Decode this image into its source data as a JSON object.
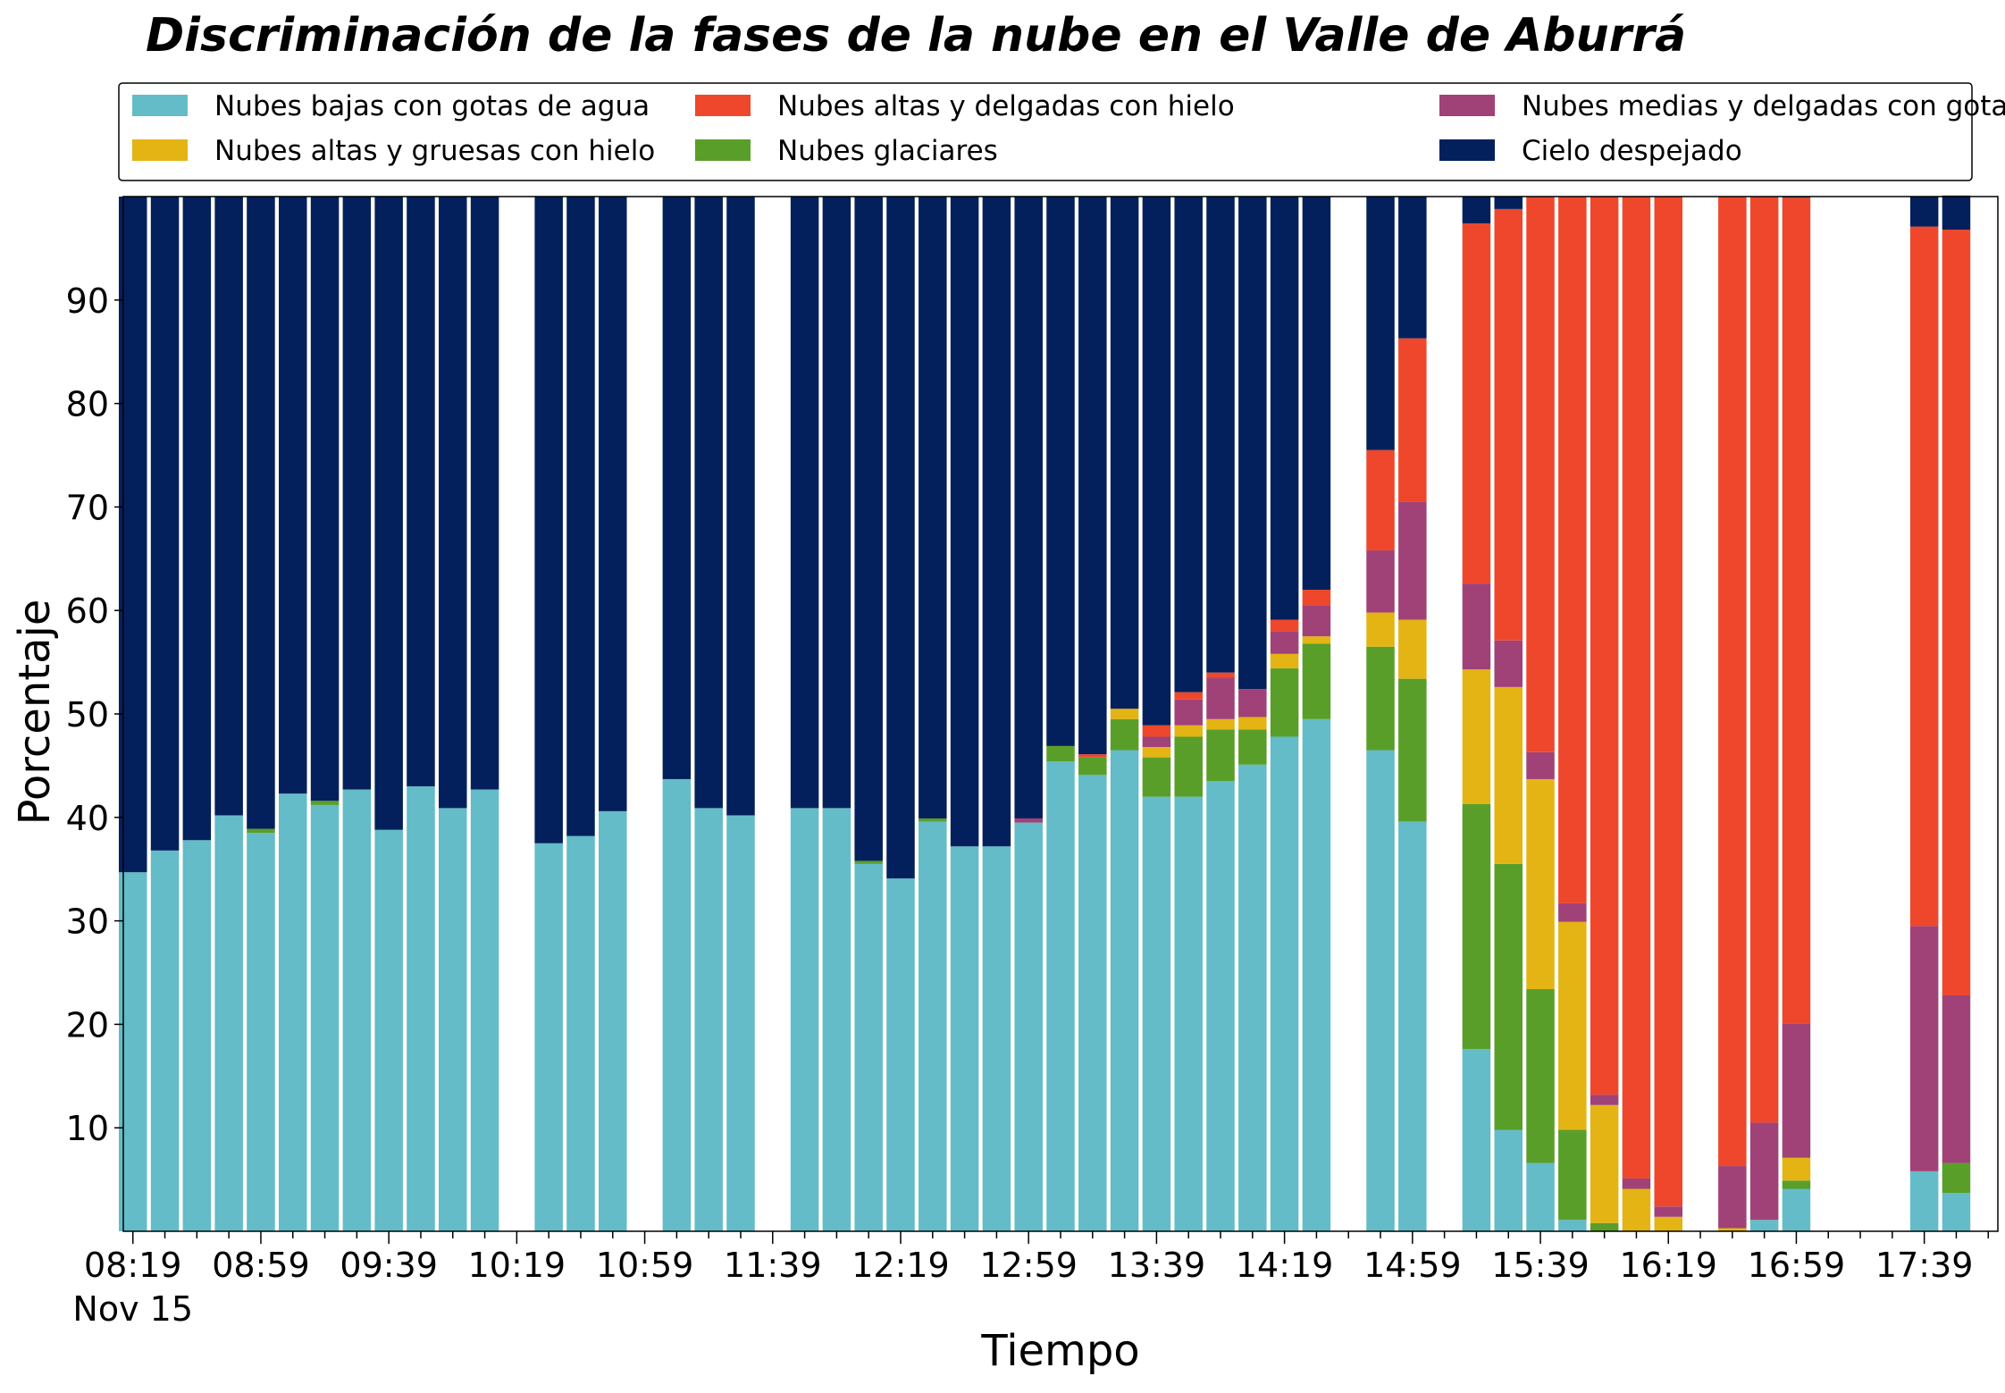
{
  "chart_data": {
    "type": "bar",
    "stacked": true,
    "title": "Discriminación de la fases de la nube en el Valle de Aburrá",
    "xlabel": "Tiempo",
    "ylabel": "Porcentaje",
    "ylim": [
      0,
      100
    ],
    "yticks": [
      10,
      20,
      30,
      40,
      50,
      60,
      70,
      80,
      90
    ],
    "x_start": "08:19",
    "x_step_minutes": 5,
    "x_count": 117,
    "x_tick_labels": [
      "08:19",
      "08:59",
      "09:39",
      "10:19",
      "10:59",
      "11:39",
      "12:19",
      "12:59",
      "13:39",
      "14:19",
      "14:59",
      "15:39",
      "16:19",
      "16:59",
      "17:39"
    ],
    "x_tick_sublabel": "Nov 15",
    "legend_position": "top",
    "grid": false,
    "legend": [
      "Nubes bajas con gotas de agua",
      "Nubes altas y gruesas con hielo",
      "Nubes altas y delgadas con hielo",
      "Nubes glaciares",
      "Nubes medias y delgadas con gotas de agua",
      "Cielo despejado"
    ],
    "series": [
      {
        "name": "Nubes bajas con gotas de agua",
        "color": "#63BCC8"
      },
      {
        "name": "Nubes glaciares",
        "color": "#5A9E2A"
      },
      {
        "name": "Nubes altas y gruesas con hielo",
        "color": "#E3B414"
      },
      {
        "name": "Nubes medias y delgadas con gotas de agua",
        "color": "#A04278"
      },
      {
        "name": "Nubes altas y delgadas con hielo",
        "color": "#EE472C"
      },
      {
        "name": "Cielo despejado",
        "color": "#03205C"
      }
    ],
    "bars": [
      {
        "time": "08:19",
        "values": [
          34.7,
          0,
          0,
          0,
          0,
          65.3
        ]
      },
      {
        "time": "08:29",
        "values": [
          36.8,
          0,
          0,
          0,
          0,
          63.2
        ]
      },
      {
        "time": "08:39",
        "values": [
          37.8,
          0,
          0,
          0,
          0,
          62.2
        ]
      },
      {
        "time": "08:49",
        "values": [
          40.2,
          0,
          0,
          0,
          0,
          59.8
        ]
      },
      {
        "time": "08:59",
        "values": [
          38.5,
          0.4,
          0,
          0,
          0,
          61.1
        ]
      },
      {
        "time": "09:09",
        "values": [
          42.3,
          0,
          0,
          0,
          0,
          57.7
        ]
      },
      {
        "time": "09:19",
        "values": [
          41.2,
          0.4,
          0,
          0,
          0,
          58.4
        ]
      },
      {
        "time": "09:29",
        "values": [
          42.7,
          0,
          0,
          0,
          0,
          57.3
        ]
      },
      {
        "time": "09:39",
        "values": [
          38.8,
          0,
          0,
          0,
          0,
          61.2
        ]
      },
      {
        "time": "09:49",
        "values": [
          43.0,
          0,
          0,
          0,
          0,
          57.0
        ]
      },
      {
        "time": "09:59",
        "values": [
          40.9,
          0,
          0,
          0,
          0,
          59.1
        ]
      },
      {
        "time": "10:09",
        "values": [
          42.7,
          0,
          0,
          0,
          0,
          57.3
        ]
      },
      {
        "time": "10:29",
        "values": [
          37.5,
          0,
          0,
          0,
          0,
          62.5
        ]
      },
      {
        "time": "10:39",
        "values": [
          38.2,
          0,
          0,
          0,
          0,
          61.8
        ]
      },
      {
        "time": "10:49",
        "values": [
          40.6,
          0,
          0,
          0,
          0,
          59.4
        ]
      },
      {
        "time": "11:09",
        "values": [
          43.7,
          0,
          0,
          0,
          0,
          56.3
        ]
      },
      {
        "time": "11:19",
        "values": [
          40.9,
          0,
          0,
          0,
          0,
          59.1
        ]
      },
      {
        "time": "11:29",
        "values": [
          40.2,
          0,
          0,
          0,
          0,
          59.8
        ]
      },
      {
        "time": "11:49",
        "values": [
          40.9,
          0,
          0,
          0,
          0,
          59.1
        ]
      },
      {
        "time": "11:59",
        "values": [
          40.9,
          0,
          0,
          0,
          0,
          59.1
        ]
      },
      {
        "time": "12:09",
        "values": [
          35.5,
          0.3,
          0,
          0,
          0,
          64.2
        ]
      },
      {
        "time": "12:19",
        "values": [
          34.1,
          0,
          0,
          0,
          0,
          65.9
        ]
      },
      {
        "time": "12:29",
        "values": [
          39.6,
          0.3,
          0,
          0,
          0,
          60.1
        ]
      },
      {
        "time": "12:39",
        "values": [
          37.2,
          0,
          0,
          0,
          0,
          62.8
        ]
      },
      {
        "time": "12:49",
        "values": [
          37.2,
          0,
          0,
          0,
          0,
          62.8
        ]
      },
      {
        "time": "12:59",
        "values": [
          39.5,
          0,
          0,
          0.4,
          0,
          60.1
        ]
      },
      {
        "time": "13:09",
        "values": [
          45.4,
          1.5,
          0,
          0,
          0,
          53.1
        ]
      },
      {
        "time": "13:19",
        "values": [
          44.1,
          1.7,
          0,
          0,
          0.3,
          53.9
        ]
      },
      {
        "time": "13:29",
        "values": [
          46.5,
          3.0,
          1.0,
          0,
          0,
          49.5
        ]
      },
      {
        "time": "13:39",
        "values": [
          42.0,
          3.8,
          1.0,
          1.0,
          1.1,
          51.1
        ]
      },
      {
        "time": "13:49",
        "values": [
          42.0,
          5.8,
          1.1,
          2.5,
          0.7,
          47.9
        ]
      },
      {
        "time": "13:59",
        "values": [
          43.5,
          5.0,
          1.0,
          4.0,
          0.5,
          46.0
        ]
      },
      {
        "time": "14:09",
        "values": [
          45.1,
          3.4,
          1.2,
          2.7,
          0,
          47.6
        ]
      },
      {
        "time": "14:19",
        "values": [
          47.8,
          6.6,
          1.4,
          2.2,
          1.1,
          40.9
        ]
      },
      {
        "time": "14:29",
        "values": [
          49.5,
          7.3,
          0.7,
          3.0,
          1.5,
          38.0
        ]
      },
      {
        "time": "14:49",
        "values": [
          46.5,
          10.0,
          3.3,
          6.0,
          9.7,
          24.5
        ]
      },
      {
        "time": "14:59",
        "values": [
          39.6,
          13.8,
          5.7,
          11.4,
          15.8,
          13.7
        ]
      },
      {
        "time": "15:19",
        "values": [
          17.6,
          23.7,
          13.0,
          8.3,
          34.8,
          2.6
        ]
      },
      {
        "time": "15:29",
        "values": [
          9.8,
          25.7,
          17.1,
          4.5,
          41.7,
          1.2
        ]
      },
      {
        "time": "15:39",
        "values": [
          6.6,
          16.8,
          20.3,
          2.6,
          53.7,
          0
        ]
      },
      {
        "time": "15:49",
        "values": [
          1.1,
          8.7,
          20.1,
          1.8,
          68.3,
          0
        ]
      },
      {
        "time": "15:59",
        "values": [
          0,
          0.8,
          11.4,
          1.0,
          86.8,
          0
        ]
      },
      {
        "time": "16:09",
        "values": [
          0,
          0,
          4.1,
          1.0,
          94.9,
          0
        ]
      },
      {
        "time": "16:19",
        "values": [
          0,
          0,
          1.4,
          1.0,
          97.6,
          0
        ]
      },
      {
        "time": "16:39",
        "values": [
          0,
          0,
          0.3,
          6.0,
          93.7,
          0
        ]
      },
      {
        "time": "16:49",
        "values": [
          1.1,
          0,
          0,
          9.4,
          89.5,
          0
        ]
      },
      {
        "time": "16:59",
        "values": [
          4.1,
          0.8,
          2.2,
          13.0,
          79.8,
          0.1
        ]
      },
      {
        "time": "17:39",
        "values": [
          5.8,
          0,
          0,
          23.7,
          67.6,
          2.9
        ]
      },
      {
        "time": "17:49",
        "values": [
          3.7,
          2.9,
          0,
          16.2,
          74.0,
          3.3
        ]
      }
    ]
  }
}
